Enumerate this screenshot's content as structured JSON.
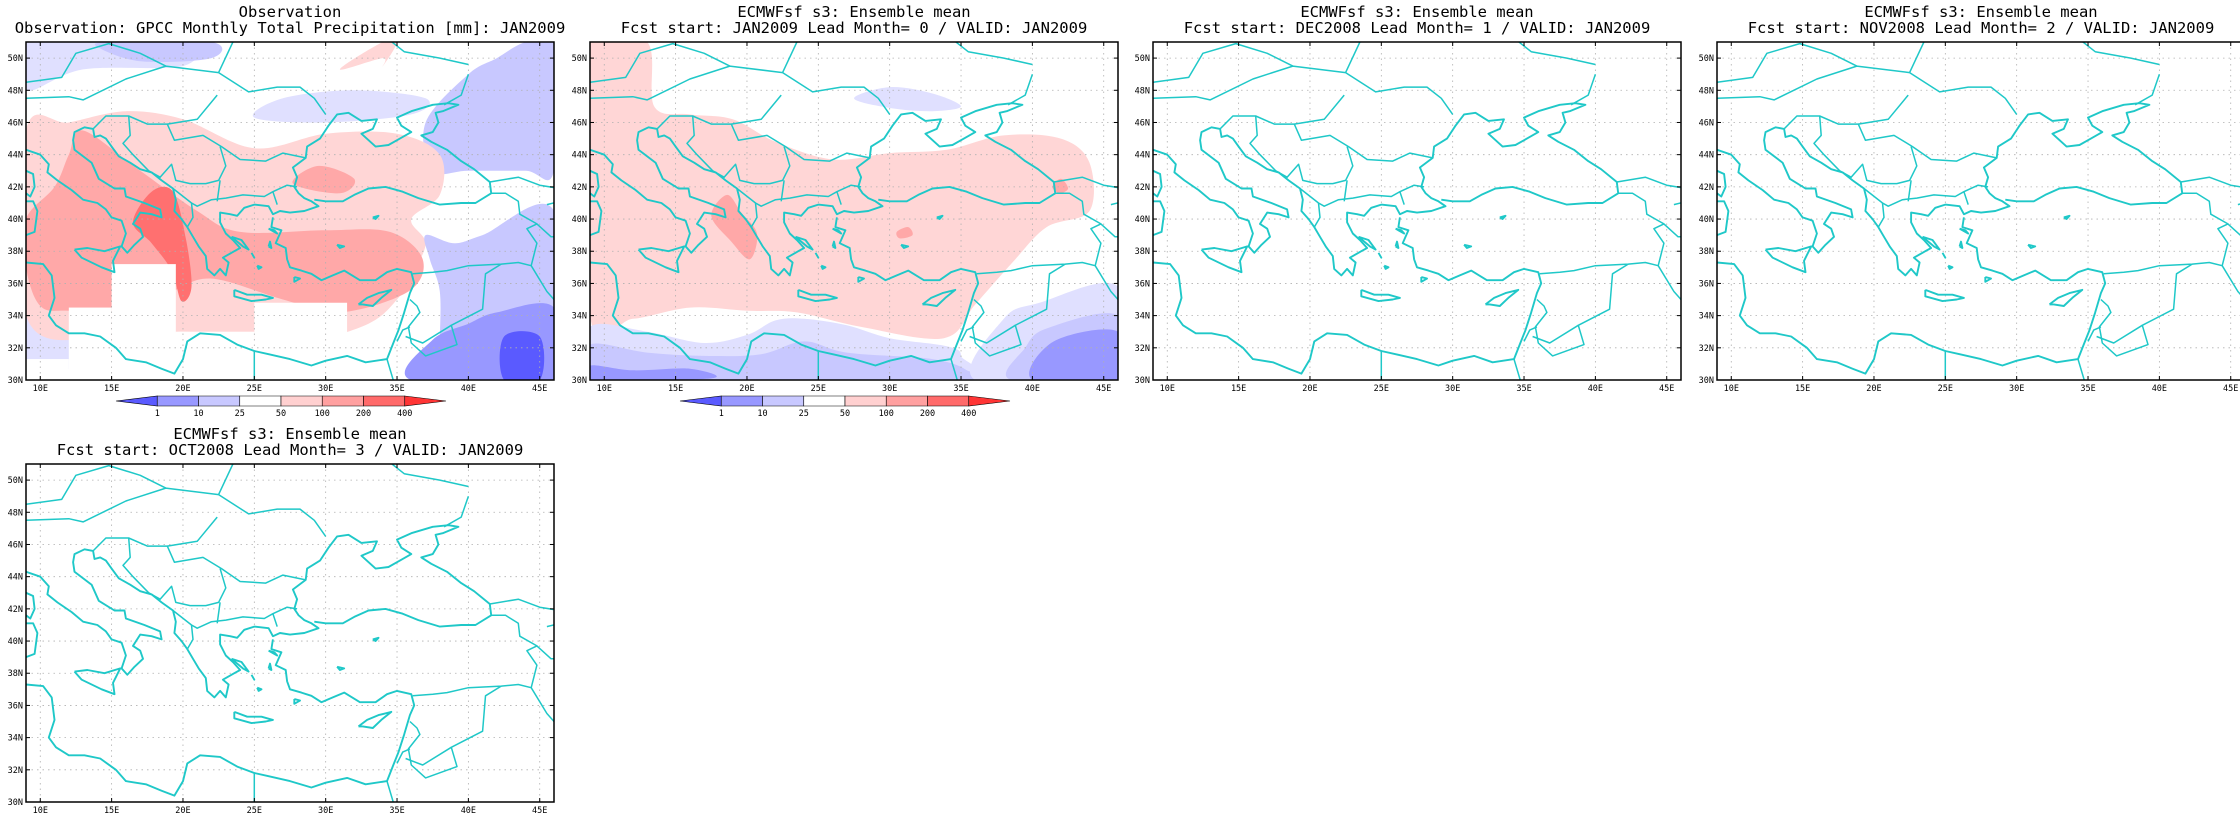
{
  "panels": [
    {
      "id": "observation",
      "title1": "Observation",
      "title2": "Observation: GPCC Monthly Total Precipitation [mm]: JAN2009",
      "field": "obs",
      "colorbar": true
    },
    {
      "id": "lead0",
      "title1": "ECMWFsf s3: Ensemble mean",
      "title2": "Fcst start: JAN2009  Lead Month= 0 / VALID: JAN2009",
      "field": "lead0",
      "colorbar": true
    },
    {
      "id": "lead1",
      "title1": "ECMWFsf s3: Ensemble mean",
      "title2": "Fcst start: DEC2008  Lead Month= 1 / VALID: JAN2009",
      "field": "none",
      "colorbar": false
    },
    {
      "id": "lead2",
      "title1": "ECMWFsf s3: Ensemble mean",
      "title2": "Fcst start: NOV2008  Lead Month= 2 / VALID: JAN2009",
      "field": "none",
      "colorbar": false
    },
    {
      "id": "lead3",
      "title1": "ECMWFsf s3: Ensemble mean",
      "title2": "Fcst start: OCT2008  Lead Month= 3 / VALID: JAN2009",
      "field": "none",
      "colorbar": false
    }
  ],
  "map": {
    "lon_range": [
      9,
      46
    ],
    "lat_range": [
      30,
      51
    ],
    "lon_tick_values": [
      10,
      15,
      20,
      25,
      30,
      35,
      40,
      45
    ],
    "lon_tick_labels": [
      "10E",
      "15E",
      "20E",
      "25E",
      "30E",
      "35E",
      "40E",
      "45E"
    ],
    "lat_tick_values": [
      30,
      32,
      34,
      36,
      38,
      40,
      42,
      44,
      46,
      48,
      50
    ],
    "lat_tick_labels": [
      "30N",
      "32N",
      "34N",
      "36N",
      "38N",
      "40N",
      "42N",
      "44N",
      "46N",
      "48N",
      "50N"
    ],
    "coast_color": "#1fc8c8",
    "grid": true
  },
  "colorbar": {
    "labels": [
      "1",
      "10",
      "25",
      "50",
      "100",
      "200",
      "400"
    ],
    "colors": [
      "#5a5aff",
      "#9898ff",
      "#c8c8ff",
      "#ffffff",
      "#ffd0d0",
      "#ffa0a0",
      "#ff6a6a",
      "#ff3535"
    ]
  }
}
